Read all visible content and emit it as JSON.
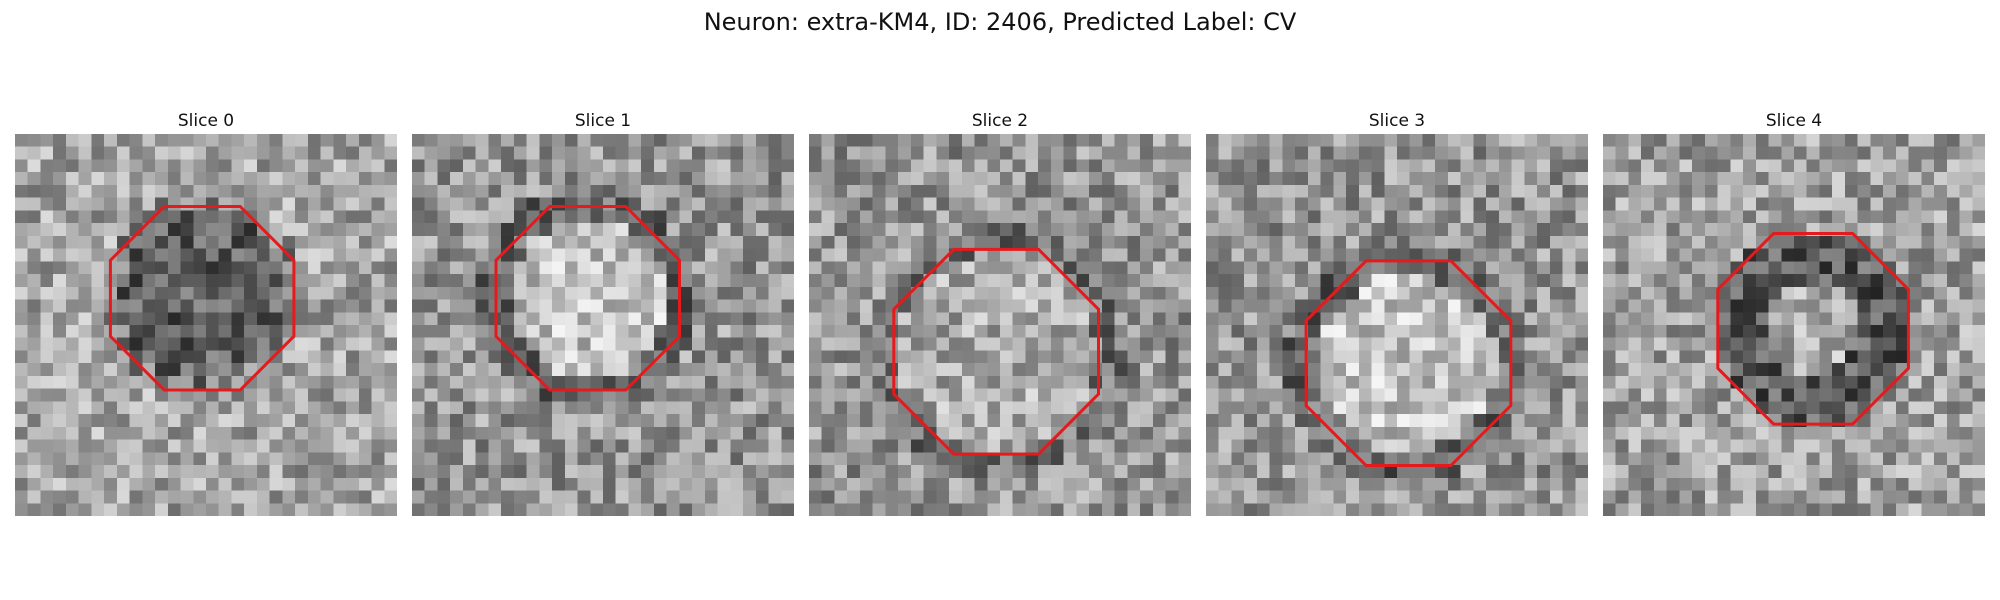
{
  "figure": {
    "title": "Neuron: extra-KM4, ID: 2406, Predicted Label: CV"
  },
  "panels": [
    {
      "title": "Slice 0",
      "image_icon": "grayscale-microscopy-slice-icon",
      "outline_color": "#e41a1c",
      "outline_shape": "octagon",
      "center": [
        0.49,
        0.43
      ],
      "radius": 0.26,
      "appearance": "dark-center",
      "seed": 11
    },
    {
      "title": "Slice 1",
      "image_icon": "grayscale-microscopy-slice-icon",
      "outline_color": "#e41a1c",
      "outline_shape": "octagon",
      "center": [
        0.46,
        0.43
      ],
      "radius": 0.26,
      "appearance": "bright-center",
      "seed": 23
    },
    {
      "title": "Slice 2",
      "image_icon": "grayscale-microscopy-slice-icon",
      "outline_color": "#e41a1c",
      "outline_shape": "octagon",
      "center": [
        0.49,
        0.57
      ],
      "radius": 0.29,
      "appearance": "mottled-center",
      "seed": 37
    },
    {
      "title": "Slice 3",
      "image_icon": "grayscale-microscopy-slice-icon",
      "outline_color": "#e41a1c",
      "outline_shape": "octagon",
      "center": [
        0.53,
        0.6
      ],
      "radius": 0.29,
      "appearance": "bright-center",
      "seed": 51
    },
    {
      "title": "Slice 4",
      "image_icon": "grayscale-microscopy-slice-icon",
      "outline_color": "#e41a1c",
      "outline_shape": "octagon",
      "center": [
        0.55,
        0.51
      ],
      "radius": 0.27,
      "appearance": "dark-ring",
      "seed": 67
    }
  ]
}
